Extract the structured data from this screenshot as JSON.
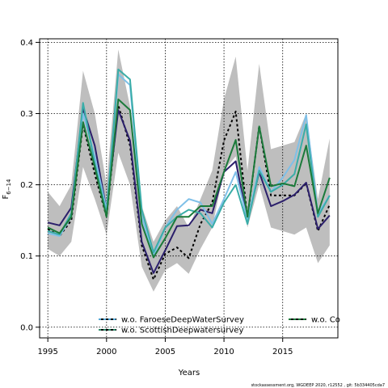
{
  "chart_data": {
    "type": "line",
    "xlabel": "Years",
    "ylabel": "F",
    "ylabel_sub": "6−14",
    "xlim": [
      1994.3,
      2019.7
    ],
    "ylim": [
      -0.015,
      0.405
    ],
    "xticks": [
      1995,
      2000,
      2005,
      2010,
      2015
    ],
    "yticks": [
      0.0,
      0.1,
      0.2,
      0.3,
      0.4
    ],
    "ytick_labels": [
      "0.0",
      "0.1",
      "0.2",
      "0.3",
      "0.4"
    ],
    "grid": true,
    "x": [
      1995,
      1996,
      1997,
      1998,
      1999,
      2000,
      2001,
      2002,
      2003,
      2004,
      2005,
      2006,
      2007,
      2008,
      2009,
      2010,
      2011,
      2012,
      2013,
      2014,
      2015,
      2016,
      2017,
      2018,
      2019
    ],
    "band": {
      "color": "#bebebe",
      "upper": [
        0.19,
        0.17,
        0.2,
        0.36,
        0.3,
        0.2,
        0.39,
        0.31,
        0.17,
        0.12,
        0.15,
        0.17,
        0.14,
        0.18,
        0.22,
        0.32,
        0.38,
        0.22,
        0.37,
        0.25,
        0.255,
        0.26,
        0.3,
        0.18,
        0.265
      ],
      "lower": [
        0.11,
        0.1,
        0.12,
        0.225,
        0.18,
        0.13,
        0.245,
        0.2,
        0.085,
        0.05,
        0.08,
        0.09,
        0.075,
        0.11,
        0.14,
        0.22,
        0.24,
        0.14,
        0.2,
        0.14,
        0.135,
        0.13,
        0.14,
        0.09,
        0.115
      ]
    },
    "series": [
      {
        "key": "base",
        "color": "#000000",
        "dash": "3,3",
        "width": 2,
        "values": [
          0.138,
          0.128,
          0.15,
          0.285,
          0.215,
          0.155,
          0.312,
          0.255,
          0.115,
          0.067,
          0.103,
          0.112,
          0.097,
          0.145,
          0.175,
          0.262,
          0.303,
          0.153,
          0.283,
          0.185,
          0.185,
          0.185,
          0.202,
          0.135,
          0.172
        ]
      },
      {
        "key": "navy",
        "color": "#2b1f6b",
        "dash": "",
        "width": 2,
        "values": [
          0.147,
          0.143,
          0.168,
          0.307,
          0.255,
          0.165,
          0.305,
          0.262,
          0.12,
          0.076,
          0.108,
          0.142,
          0.143,
          0.165,
          0.16,
          0.218,
          0.233,
          0.15,
          0.218,
          0.17,
          0.177,
          0.186,
          0.203,
          0.138,
          0.157
        ]
      },
      {
        "key": "lightblue",
        "color": "#7fc0e8",
        "dash": "",
        "width": 2,
        "values": [
          0.132,
          0.128,
          0.155,
          0.3,
          0.24,
          0.165,
          0.355,
          0.34,
          0.155,
          0.1,
          0.14,
          0.165,
          0.18,
          0.175,
          0.145,
          0.18,
          0.218,
          0.15,
          0.225,
          0.19,
          0.21,
          0.235,
          0.298,
          0.16,
          0.185
        ]
      },
      {
        "key": "teal",
        "color": "#3aada8",
        "dash": "",
        "width": 2,
        "values": [
          0.135,
          0.13,
          0.16,
          0.315,
          0.23,
          0.16,
          0.362,
          0.348,
          0.165,
          0.105,
          0.14,
          0.155,
          0.165,
          0.16,
          0.14,
          0.175,
          0.2,
          0.145,
          0.22,
          0.19,
          0.2,
          0.215,
          0.285,
          0.155,
          0.185
        ]
      },
      {
        "key": "green",
        "color": "#1b7a3a",
        "dash": "",
        "width": 2,
        "values": [
          0.14,
          0.132,
          0.155,
          0.288,
          0.225,
          0.155,
          0.32,
          0.305,
          0.145,
          0.098,
          0.125,
          0.155,
          0.155,
          0.17,
          0.17,
          0.218,
          0.263,
          0.155,
          0.282,
          0.198,
          0.202,
          0.198,
          0.255,
          0.16,
          0.21
        ]
      }
    ],
    "legend": [
      {
        "label": "w.o. FaroeseDeepWaterSurvey",
        "color": "#4fa6d6",
        "dash": "3,3"
      },
      {
        "label": "w.o. ScottishDeepwatersurvey",
        "color": "#2e8b6a",
        "dash": "3,3"
      },
      {
        "label": "w.o. Co",
        "color": "#1b7a3a",
        "dash": "3,3"
      }
    ],
    "footer": "stockassessment.org, WGDEEP 2020, r12552 , git: 5b334405cda7"
  }
}
